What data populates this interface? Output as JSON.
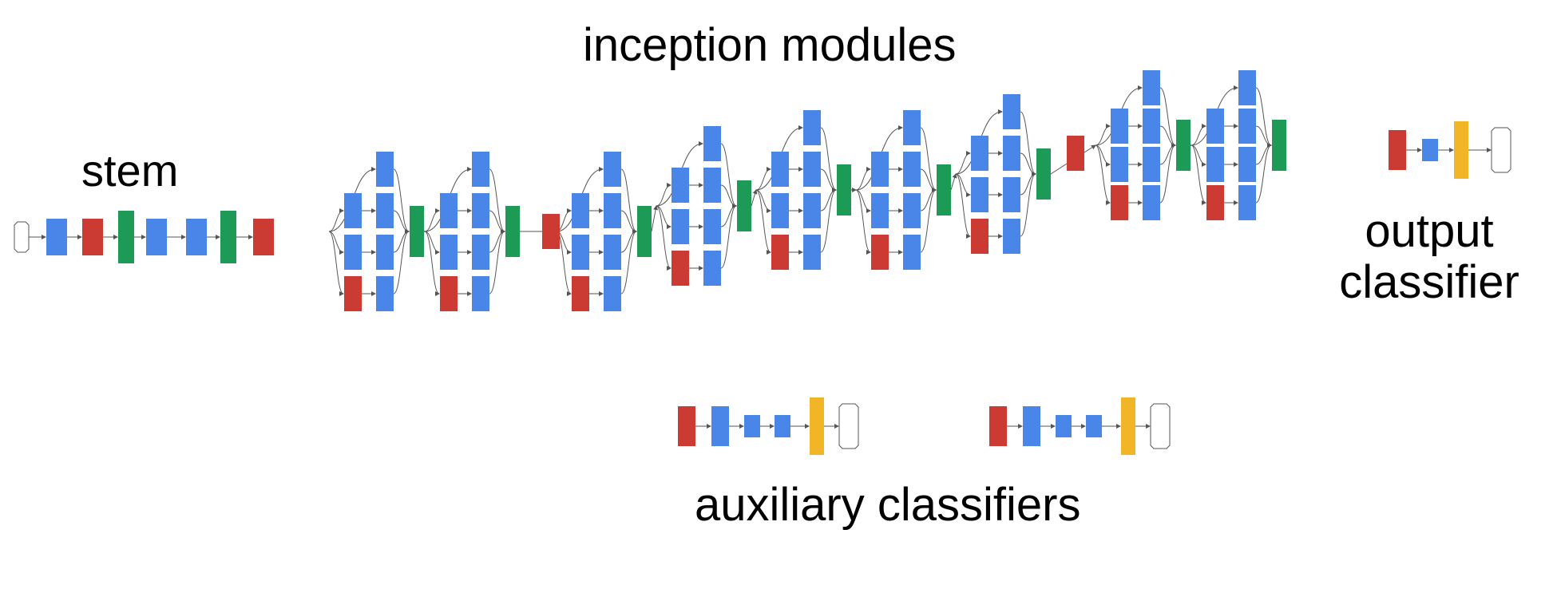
{
  "labels": {
    "stem": "stem",
    "inception": "inception modules",
    "output_line1": "output",
    "output_line2": "classifier",
    "auxiliary": "auxiliary classifiers"
  },
  "colors": {
    "conv": "#4a86e8",
    "pool": "#cc3b33",
    "concat": "#1d9a55",
    "softmax_activation": "#f2b528",
    "edge": "#555555"
  },
  "node_types": [
    "input",
    "conv",
    "pool",
    "norm",
    "concat",
    "fc",
    "softmax_activation",
    "softmax_output"
  ],
  "structure": {
    "stem_sequence": [
      "input",
      "conv",
      "pool",
      "norm",
      "conv",
      "conv",
      "norm",
      "pool"
    ],
    "inception_module_count": 9,
    "auxiliary_classifier_count": 2,
    "auxiliary_sequence": [
      "pool",
      "conv",
      "fc",
      "fc",
      "softmax_activation",
      "softmax_output"
    ],
    "output_sequence": [
      "pool",
      "fc",
      "softmax_activation",
      "softmax_output"
    ]
  }
}
